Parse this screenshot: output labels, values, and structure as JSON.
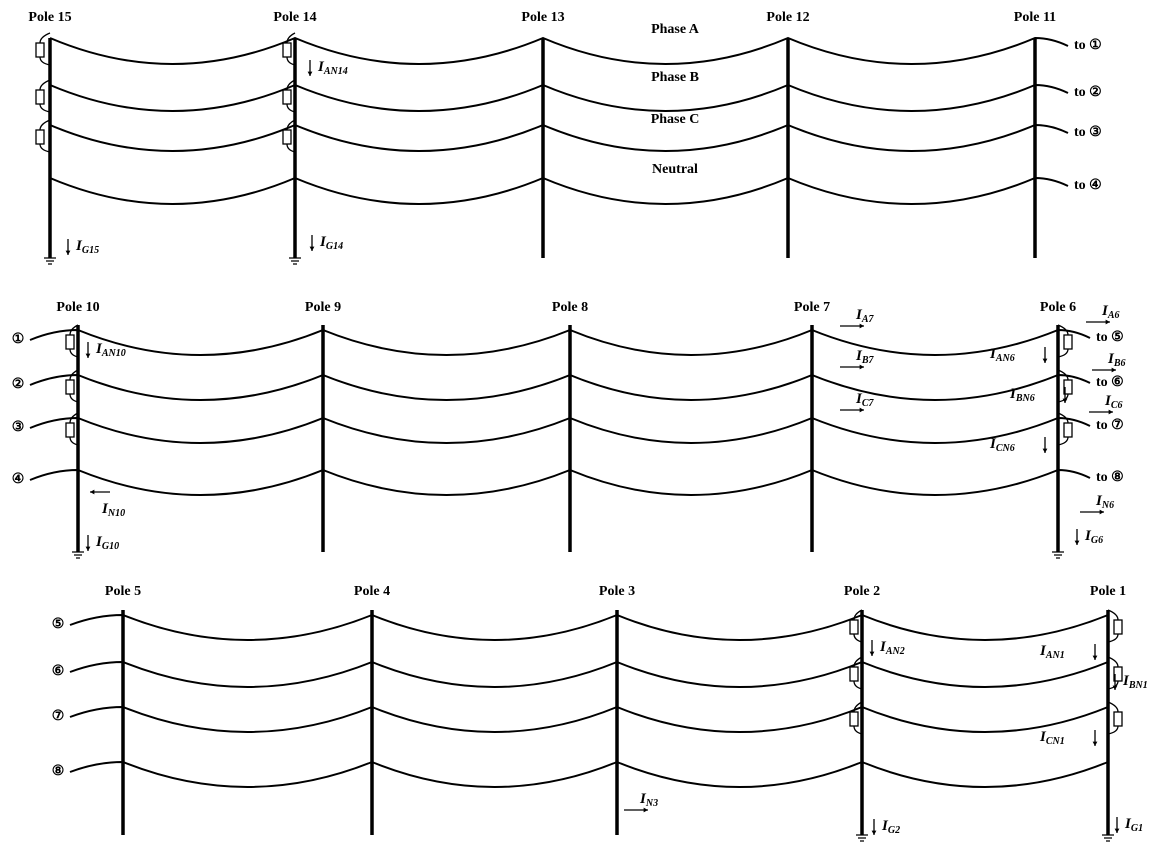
{
  "phase_labels": [
    "Phase A",
    "Phase B",
    "Phase C",
    "Neutral"
  ],
  "rows": [
    {
      "poles": [
        "Pole 15",
        "Pole 14",
        "Pole 13",
        "Pole 12",
        "Pole 11"
      ],
      "left_terminals": [],
      "right_terminals": [
        "to ①",
        "to ②",
        "to ③",
        "to ④"
      ],
      "currents": [
        {
          "main": "I",
          "sub": "AN14"
        },
        {
          "main": "I",
          "sub": "G15"
        },
        {
          "main": "I",
          "sub": "G14"
        }
      ]
    },
    {
      "poles": [
        "Pole 10",
        "Pole 9",
        "Pole 8",
        "Pole 7",
        "Pole 6"
      ],
      "left_terminals": [
        "①",
        "②",
        "③",
        "④"
      ],
      "right_terminals": [
        "to ⑤",
        "to ⑥",
        "to ⑦",
        "to ⑧"
      ],
      "currents": [
        {
          "main": "I",
          "sub": "AN10"
        },
        {
          "main": "I",
          "sub": "N10"
        },
        {
          "main": "I",
          "sub": "G10"
        },
        {
          "main": "I",
          "sub": "A7"
        },
        {
          "main": "I",
          "sub": "B7"
        },
        {
          "main": "I",
          "sub": "C7"
        },
        {
          "main": "I",
          "sub": "A6"
        },
        {
          "main": "I",
          "sub": "B6"
        },
        {
          "main": "I",
          "sub": "C6"
        },
        {
          "main": "I",
          "sub": "AN6"
        },
        {
          "main": "I",
          "sub": "BN6"
        },
        {
          "main": "I",
          "sub": "CN6"
        },
        {
          "main": "I",
          "sub": "N6"
        },
        {
          "main": "I",
          "sub": "G6"
        }
      ]
    },
    {
      "poles": [
        "Pole 5",
        "Pole 4",
        "Pole 3",
        "Pole 2",
        "Pole 1"
      ],
      "left_terminals": [
        "⑤",
        "⑥",
        "⑦",
        "⑧"
      ],
      "right_terminals": [],
      "currents": [
        {
          "main": "I",
          "sub": "AN2"
        },
        {
          "main": "I",
          "sub": "N3"
        },
        {
          "main": "I",
          "sub": "G2"
        },
        {
          "main": "I",
          "sub": "AN1"
        },
        {
          "main": "I",
          "sub": "BN1"
        },
        {
          "main": "I",
          "sub": "CN1"
        },
        {
          "main": "I",
          "sub": "G1"
        }
      ]
    }
  ]
}
